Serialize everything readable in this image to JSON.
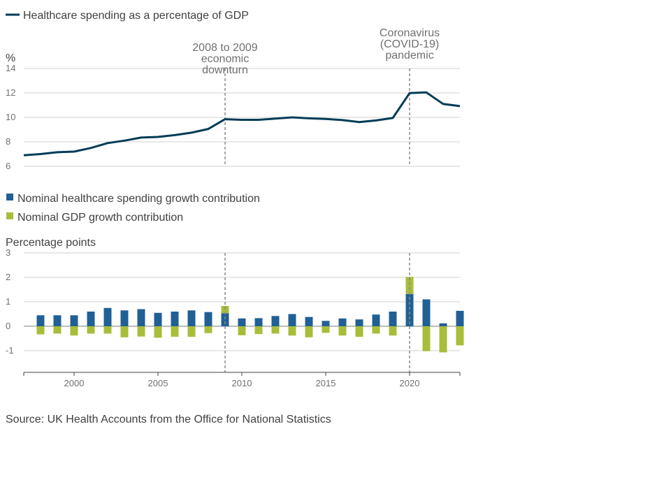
{
  "chart_data": [
    {
      "type": "line",
      "legend": [
        "Healthcare spending as a percentage of GDP"
      ],
      "ylabel": "%",
      "ylim": [
        6,
        14
      ],
      "yticks": [
        "6",
        "8",
        "10",
        "12",
        "14"
      ],
      "grid": true,
      "legend_position": "top-left",
      "series": [
        {
          "name": "Healthcare spending as a percentage of GDP",
          "color": "#003c57",
          "x": [
            1997,
            1998,
            1999,
            2000,
            2001,
            2002,
            2003,
            2004,
            2005,
            2006,
            2007,
            2008,
            2009,
            2010,
            2011,
            2012,
            2013,
            2014,
            2015,
            2016,
            2017,
            2018,
            2019,
            2020,
            2021,
            2022,
            2023
          ],
          "values": [
            6.9,
            7.0,
            7.15,
            7.2,
            7.5,
            7.9,
            8.1,
            8.35,
            8.4,
            8.55,
            8.75,
            9.05,
            9.85,
            9.8,
            9.8,
            9.9,
            10.0,
            9.92,
            9.87,
            9.78,
            9.62,
            9.75,
            9.95,
            11.98,
            12.04,
            11.1,
            10.92
          ]
        }
      ],
      "annotations": [
        {
          "lines": [
            "2008 to 2009",
            "economic",
            "downturn"
          ],
          "x": 2009
        },
        {
          "lines": [
            "Coronavirus",
            "(COVID-19)",
            "pandemic"
          ],
          "x": 2020
        }
      ]
    },
    {
      "type": "bar",
      "stacked": true,
      "legend": [
        "Nominal healthcare spending growth contribution",
        "Nominal GDP growth contribution"
      ],
      "ylabel": "Percentage points",
      "ylim": [
        -1.8,
        3
      ],
      "yticks": [
        "-1",
        "0",
        "1",
        "2",
        "3"
      ],
      "xticks": [
        "2000",
        "2005",
        "2010",
        "2015",
        "2020"
      ],
      "grid": true,
      "legend_position": "top-left",
      "x": [
        1998,
        1999,
        2000,
        2001,
        2002,
        2003,
        2004,
        2005,
        2006,
        2007,
        2008,
        2009,
        2010,
        2011,
        2012,
        2013,
        2014,
        2015,
        2016,
        2017,
        2018,
        2019,
        2020,
        2021,
        2022,
        2023
      ],
      "series": [
        {
          "name": "Nominal healthcare spending growth contribution",
          "color": "#206095",
          "values": [
            0.45,
            0.45,
            0.45,
            0.6,
            0.75,
            0.65,
            0.7,
            0.55,
            0.6,
            0.65,
            0.58,
            0.53,
            0.32,
            0.33,
            0.42,
            0.5,
            0.38,
            0.22,
            0.32,
            0.28,
            0.48,
            0.6,
            1.32,
            1.1,
            0.12,
            0.63
          ]
        },
        {
          "name": "Nominal GDP growth contribution",
          "color": "#a8bd3a",
          "values": [
            -0.33,
            -0.3,
            -0.38,
            -0.3,
            -0.3,
            -0.45,
            -0.42,
            -0.47,
            -0.43,
            -0.43,
            -0.28,
            0.3,
            -0.37,
            -0.32,
            -0.3,
            -0.38,
            -0.45,
            -0.27,
            -0.38,
            -0.43,
            -0.3,
            -0.38,
            0.7,
            -1.02,
            -1.07,
            -0.78
          ]
        }
      ],
      "annotations": [
        {
          "x": 2009
        },
        {
          "x": 2020
        }
      ]
    }
  ],
  "source": "Source: UK Health Accounts from the Office for National Statistics"
}
